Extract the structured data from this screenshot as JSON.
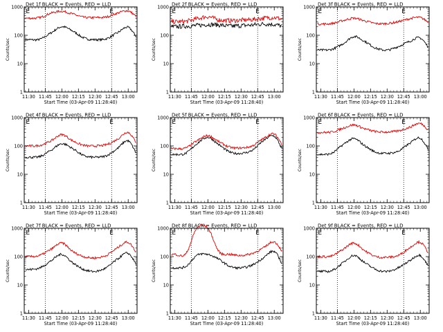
{
  "figure": {
    "xlabel": "Start Time (03-Apr-09 11:28:40)",
    "ylabel": "Counts/sec",
    "x_ticks": [
      "11:30",
      "11:45",
      "12:00",
      "12:15",
      "12:30",
      "12:45",
      "13:00"
    ],
    "y_ticks": [
      "1",
      "10",
      "100",
      "1000"
    ],
    "colors": {
      "events": "#000000",
      "lld": "#e00000",
      "axes": "#000000"
    }
  },
  "chart_data": [
    {
      "type": "line",
      "title": "Det 1f BLACK = Events, RED = LLD",
      "x_minutes": [
        0,
        10,
        20,
        30,
        40,
        50,
        60,
        70,
        80,
        90,
        100
      ],
      "series": [
        {
          "name": "BLACK = Events",
          "values": [
            70,
            72,
            120,
            200,
            140,
            80,
            70,
            75,
            120,
            190,
            70
          ]
        },
        {
          "name": "RED = LLD",
          "values": [
            400,
            420,
            600,
            700,
            560,
            430,
            420,
            440,
            600,
            720,
            400
          ]
        }
      ],
      "markers": [
        {
          "x_minutes": 0,
          "label": "E"
        },
        {
          "x_minutes": 75,
          "label": "E"
        }
      ],
      "dotted_lines_minutes": [
        15,
        75
      ],
      "ylim": [
        1,
        1000
      ],
      "log_y": true,
      "xlim": [
        -4,
        98
      ]
    },
    {
      "type": "line",
      "title": "Det 2f BLACK = Events, RED = LLD",
      "x_minutes": [
        0,
        10,
        20,
        30,
        40,
        50,
        60,
        70,
        80,
        90,
        100
      ],
      "series": [
        {
          "name": "BLACK = Events",
          "values": [
            200,
            210,
            220,
            240,
            230,
            210,
            220,
            230,
            250,
            240,
            200
          ]
        },
        {
          "name": "RED = LLD",
          "values": [
            300,
            310,
            380,
            450,
            350,
            330,
            340,
            360,
            400,
            420,
            350
          ]
        }
      ],
      "markers": [
        {
          "x_minutes": 0,
          "label": "E"
        },
        {
          "x_minutes": 75,
          "label": "E"
        }
      ],
      "dotted_lines_minutes": [
        15,
        75
      ],
      "ylim": [
        1,
        1000
      ],
      "log_y": true,
      "xlim": [
        -4,
        98
      ]
    },
    {
      "type": "line",
      "title": "Det 3f BLACK = Events, RED = LLD",
      "x_minutes": [
        0,
        10,
        20,
        30,
        40,
        50,
        60,
        70,
        80,
        90,
        100
      ],
      "series": [
        {
          "name": "BLACK = Events",
          "values": [
            30,
            32,
            50,
            90,
            60,
            35,
            30,
            40,
            60,
            80,
            30
          ]
        },
        {
          "name": "RED = LLD",
          "values": [
            250,
            260,
            330,
            400,
            320,
            260,
            260,
            300,
            380,
            420,
            260
          ]
        }
      ],
      "markers": [
        {
          "x_minutes": 0,
          "label": "E"
        },
        {
          "x_minutes": 75,
          "label": "E"
        }
      ],
      "dotted_lines_minutes": [
        15,
        75
      ],
      "ylim": [
        1,
        1000
      ],
      "log_y": true,
      "xlim": [
        -4,
        98
      ]
    },
    {
      "type": "line",
      "title": "Det 4f BLACK = Events, RED = LLD",
      "x_minutes": [
        0,
        10,
        20,
        30,
        40,
        50,
        60,
        70,
        80,
        90,
        100
      ],
      "series": [
        {
          "name": "BLACK = Events",
          "values": [
            40,
            42,
            70,
            120,
            80,
            45,
            40,
            45,
            80,
            150,
            40
          ]
        },
        {
          "name": "RED = LLD",
          "values": [
            100,
            105,
            150,
            250,
            150,
            105,
            100,
            110,
            170,
            300,
            100
          ]
        }
      ],
      "markers": [
        {
          "x_minutes": 0,
          "label": "E"
        },
        {
          "x_minutes": 75,
          "label": "E"
        }
      ],
      "dotted_lines_minutes": [
        15,
        75
      ],
      "ylim": [
        1,
        1000
      ],
      "log_y": true,
      "xlim": [
        -4,
        98
      ]
    },
    {
      "type": "line",
      "title": "Det 5f BLACK = Events, RED = LLD",
      "x_minutes": [
        0,
        10,
        20,
        30,
        40,
        50,
        60,
        70,
        80,
        90,
        100
      ],
      "series": [
        {
          "name": "BLACK = Events",
          "values": [
            50,
            55,
            120,
            200,
            110,
            60,
            55,
            70,
            150,
            220,
            55
          ]
        },
        {
          "name": "RED = LLD",
          "values": [
            80,
            85,
            150,
            230,
            140,
            90,
            85,
            100,
            180,
            260,
            85
          ]
        }
      ],
      "markers": [
        {
          "x_minutes": 0,
          "label": "E"
        },
        {
          "x_minutes": 75,
          "label": "E"
        }
      ],
      "dotted_lines_minutes": [
        15,
        75
      ],
      "ylim": [
        1,
        1000
      ],
      "log_y": true,
      "xlim": [
        -4,
        98
      ]
    },
    {
      "type": "line",
      "title": "Det 6f BLACK = Events, RED = LLD",
      "x_minutes": [
        0,
        10,
        20,
        30,
        40,
        50,
        60,
        70,
        80,
        90,
        100
      ],
      "series": [
        {
          "name": "BLACK = Events",
          "values": [
            50,
            55,
            110,
            180,
            100,
            60,
            55,
            65,
            120,
            190,
            55
          ]
        },
        {
          "name": "RED = LLD",
          "values": [
            300,
            310,
            420,
            550,
            400,
            320,
            310,
            340,
            450,
            620,
            310
          ]
        }
      ],
      "markers": [
        {
          "x_minutes": 0,
          "label": "E"
        },
        {
          "x_minutes": 75,
          "label": "E"
        }
      ],
      "dotted_lines_minutes": [
        15,
        75
      ],
      "ylim": [
        1,
        1000
      ],
      "log_y": true,
      "xlim": [
        -4,
        98
      ]
    },
    {
      "type": "line",
      "title": "Det 7f BLACK = Events, RED = LLD",
      "x_minutes": [
        0,
        10,
        20,
        30,
        40,
        50,
        60,
        70,
        80,
        90,
        100
      ],
      "series": [
        {
          "name": "BLACK = Events",
          "values": [
            35,
            40,
            70,
            120,
            60,
            35,
            30,
            40,
            80,
            130,
            40
          ]
        },
        {
          "name": "RED = LLD",
          "values": [
            100,
            110,
            180,
            300,
            150,
            100,
            90,
            110,
            200,
            320,
            110
          ]
        }
      ],
      "markers": [
        {
          "x_minutes": 0,
          "label": "E"
        },
        {
          "x_minutes": 75,
          "label": "E"
        }
      ],
      "dotted_lines_minutes": [
        15,
        75
      ],
      "ylim": [
        1,
        1000
      ],
      "log_y": true,
      "xlim": [
        -4,
        98
      ]
    },
    {
      "type": "line",
      "title": "Det 8f BLACK = Events, RED = LLD",
      "x_minutes": [
        0,
        10,
        20,
        30,
        40,
        50,
        60,
        70,
        80,
        90,
        100
      ],
      "series": [
        {
          "name": "BLACK = Events",
          "values": [
            40,
            45,
            110,
            120,
            80,
            45,
            40,
            50,
            90,
            150,
            40
          ]
        },
        {
          "name": "RED = LLD",
          "values": [
            120,
            125,
            1000,
            1000,
            150,
            120,
            110,
            130,
            200,
            330,
            120
          ]
        }
      ],
      "markers": [
        {
          "x_minutes": 0,
          "label": "E"
        },
        {
          "x_minutes": 75,
          "label": "E"
        }
      ],
      "dotted_lines_minutes": [
        15,
        75
      ],
      "ylim": [
        1,
        1000
      ],
      "log_y": true,
      "xlim": [
        -4,
        98
      ]
    },
    {
      "type": "line",
      "title": "Det 9f BLACK = Events, RED = LLD",
      "x_minutes": [
        0,
        10,
        20,
        30,
        40,
        50,
        60,
        70,
        80,
        90,
        100
      ],
      "series": [
        {
          "name": "BLACK = Events",
          "values": [
            30,
            32,
            60,
            110,
            60,
            35,
            30,
            40,
            70,
            110,
            35
          ]
        },
        {
          "name": "RED = LLD",
          "values": [
            100,
            105,
            180,
            300,
            160,
            100,
            95,
            110,
            200,
            320,
            105
          ]
        }
      ],
      "markers": [
        {
          "x_minutes": 0,
          "label": "E"
        },
        {
          "x_minutes": 75,
          "label": "E"
        }
      ],
      "dotted_lines_minutes": [
        15,
        75
      ],
      "ylim": [
        1,
        1000
      ],
      "log_y": true,
      "xlim": [
        -4,
        98
      ]
    }
  ]
}
